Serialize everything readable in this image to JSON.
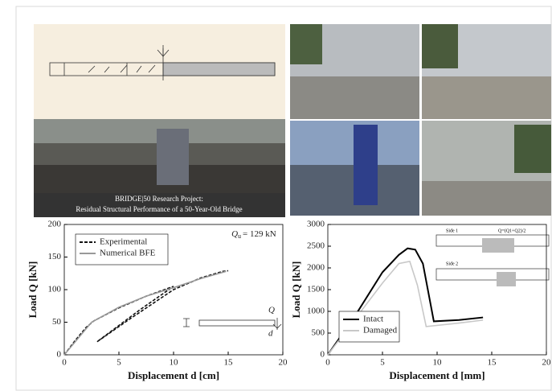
{
  "banner": {
    "line1": "BRIDGE|50 Research Project:",
    "line2": "Residual Structural Performance of a 50-Year-Old Bridge"
  },
  "chart_data": [
    {
      "type": "line",
      "xlabel": "Displacement d [cm]",
      "ylabel": "Load Q [kN]",
      "xlim": [
        0,
        20
      ],
      "xticks": [
        0,
        5,
        10,
        15,
        20
      ],
      "ylim": [
        0,
        200
      ],
      "yticks": [
        0,
        50,
        100,
        150,
        200
      ],
      "legend": "upper-left",
      "series": [
        {
          "name": "Experimental",
          "color": "#111111",
          "linestyle": "dashed",
          "x": [
            0,
            1,
            2,
            2.7,
            5,
            7.5,
            10,
            7,
            3,
            6,
            10,
            12.5,
            14.5,
            15
          ],
          "values": [
            0,
            22,
            42,
            52,
            72,
            90,
            105,
            70,
            20,
            55,
            100,
            118,
            128,
            129
          ]
        },
        {
          "name": "Numerical BFE",
          "color": "#999999",
          "linestyle": "solid",
          "x": [
            0,
            2.5,
            5,
            7.5,
            10,
            12.5,
            14.8
          ],
          "values": [
            0,
            50,
            73,
            90,
            103,
            117,
            128
          ]
        }
      ],
      "annotation": {
        "symbol": "Q",
        "subscript": "u",
        "text": "= 129 kN"
      },
      "inset_labels": [
        "Q",
        "d"
      ]
    },
    {
      "type": "line",
      "xlabel": "Displacement d [mm]",
      "ylabel": "Load Q [kN]",
      "xlim": [
        0,
        20
      ],
      "xticks": [
        0,
        5,
        10,
        15,
        20
      ],
      "ylim": [
        0,
        3000
      ],
      "yticks": [
        0,
        500,
        1000,
        1500,
        2000,
        2500,
        3000
      ],
      "legend": "lower-left",
      "series": [
        {
          "name": "Intact",
          "color": "#000000",
          "linestyle": "solid",
          "x": [
            0,
            2.5,
            5,
            6.5,
            7.3,
            8,
            8.7,
            9.7,
            12,
            14.2
          ],
          "values": [
            0,
            900,
            1900,
            2300,
            2450,
            2420,
            2100,
            770,
            800,
            860
          ]
        },
        {
          "name": "Damaged",
          "color": "#c8c8c8",
          "linestyle": "solid",
          "x": [
            0,
            5,
            6.5,
            7.5,
            8.2,
            9,
            12,
            14.2
          ],
          "values": [
            0,
            1650,
            2100,
            2150,
            1600,
            650,
            730,
            800
          ]
        }
      ],
      "inset_labels": [
        "Side 1",
        "Side 2",
        "Q=(Q1+Q2)/2"
      ]
    }
  ]
}
